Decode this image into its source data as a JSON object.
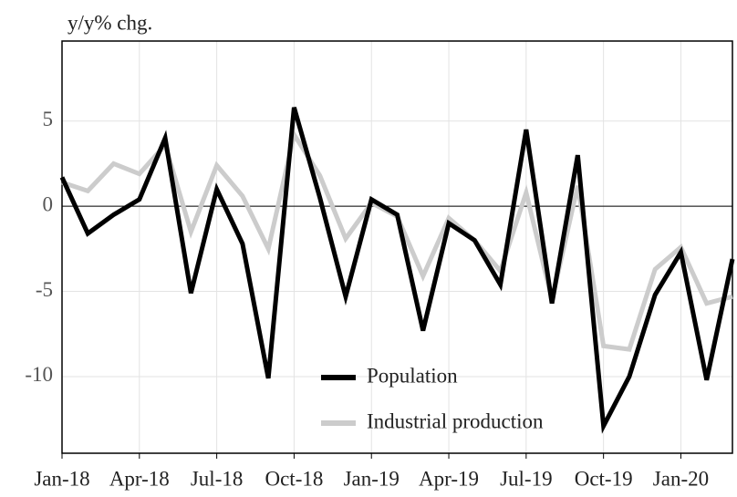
{
  "chart_data": {
    "type": "line",
    "y_label": "y/y% chg.",
    "categories": [
      "Jan-18",
      null,
      null,
      "Apr-18",
      null,
      null,
      "Jul-18",
      null,
      null,
      "Oct-18",
      null,
      null,
      "Jan-19",
      null,
      null,
      "Apr-19",
      null,
      null,
      "Jul-19",
      null,
      null,
      "Oct-19",
      null,
      null,
      "Jan-20",
      null,
      null
    ],
    "series": [
      {
        "name": "Population",
        "color": "#000000",
        "values": [
          1.7,
          -1.6,
          -0.5,
          0.4,
          4.0,
          -5.1,
          1.0,
          -2.2,
          -10.1,
          5.8,
          0.5,
          -5.3,
          0.4,
          -0.5,
          -7.3,
          -1.0,
          -2.0,
          -4.6,
          4.5,
          -5.7,
          3.0,
          -12.9,
          -10.0,
          -5.2,
          -2.7,
          -10.2,
          -3.1
        ]
      },
      {
        "name": "Industrial production",
        "color": "#cccccc",
        "values": [
          1.4,
          0.9,
          2.5,
          1.9,
          3.6,
          -1.5,
          2.4,
          0.6,
          -2.5,
          4.2,
          1.8,
          -1.9,
          0.2,
          -0.6,
          -4.1,
          -0.7,
          -2.0,
          -3.8,
          0.8,
          -5.5,
          1.2,
          -8.2,
          -8.4,
          -3.7,
          -2.4,
          -5.7,
          -5.3
        ]
      }
    ],
    "ylim": [
      -14.5,
      9.7
    ],
    "yticks": [
      -10,
      -5,
      0,
      5
    ],
    "hline": 0,
    "grid": true,
    "legend": "bottom-center"
  }
}
